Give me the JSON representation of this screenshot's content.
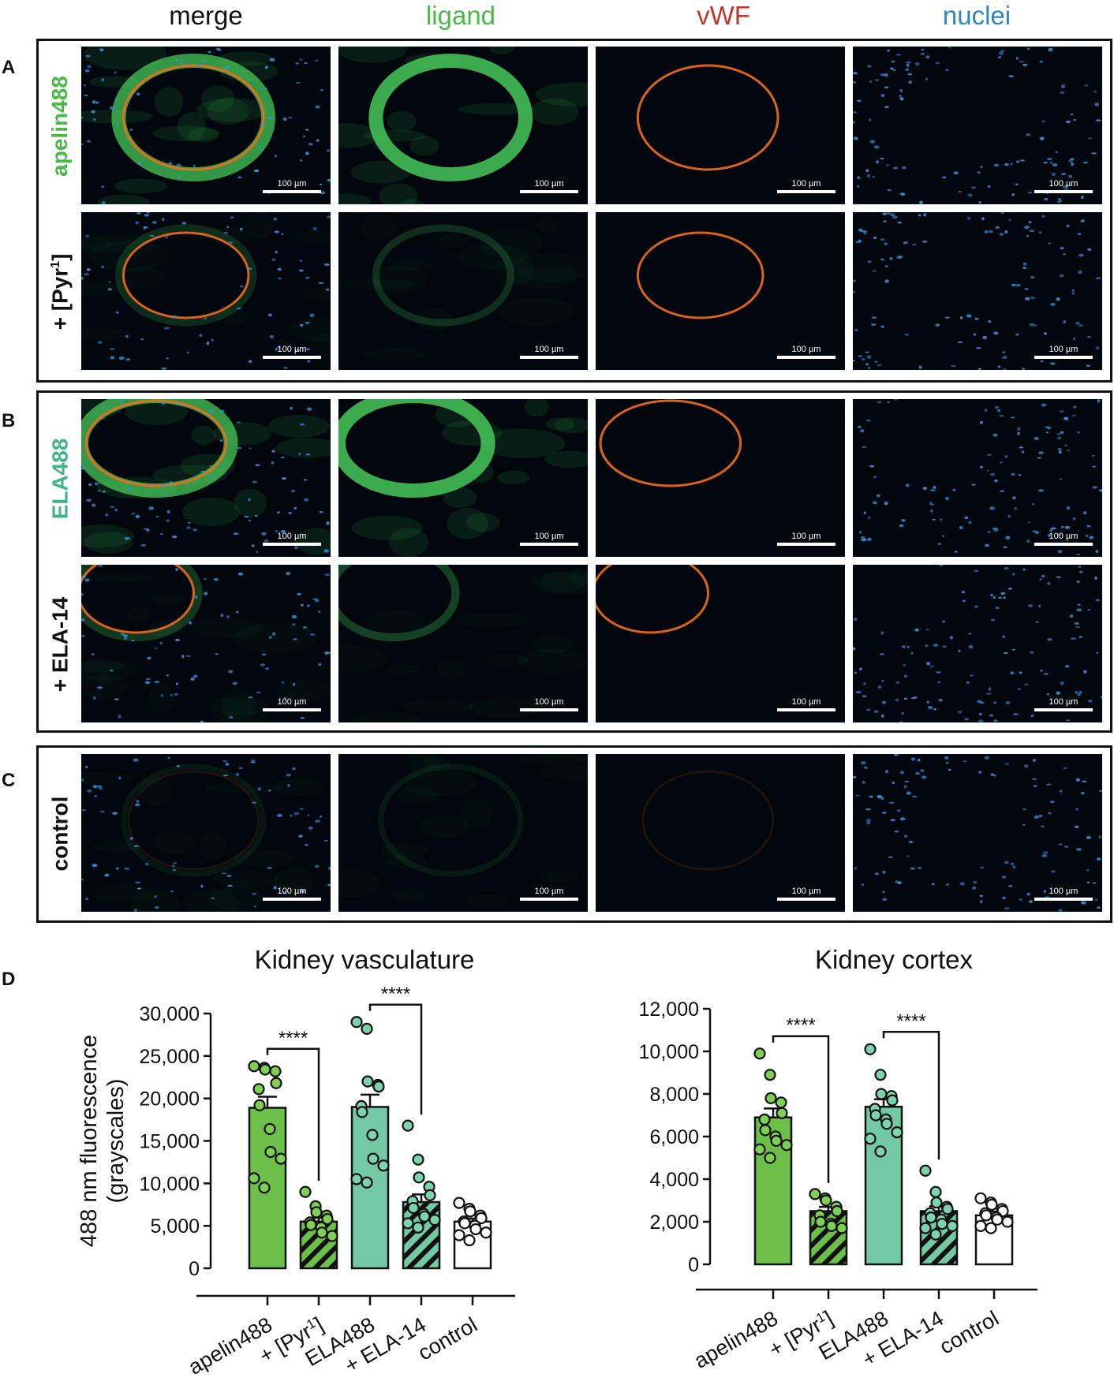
{
  "colors": {
    "green": "#4cb84a",
    "red": "#c0392b",
    "blue": "#2f86c6",
    "apelin_bar": "#6cc04a",
    "ela_bar": "#72c9a4",
    "control_bar": "#ffffff",
    "dot_apelin": "#7fcf56",
    "dot_ela": "#7dd3ae"
  },
  "column_headers": [
    "merge",
    "ligand",
    "vWF",
    "nuclei"
  ],
  "panels": {
    "A": {
      "letter": "A",
      "rows": [
        {
          "label": "apelin488",
          "label_color": "green"
        },
        {
          "label_prefix": "+ [Pyr",
          "label_sup": "1",
          "label_suffix": "]",
          "label_color": "black"
        }
      ]
    },
    "B": {
      "letter": "B",
      "rows": [
        {
          "label": "ELA488",
          "label_color": "teal"
        },
        {
          "label": "+ ELA-14",
          "label_color": "black"
        }
      ]
    },
    "C": {
      "letter": "C",
      "rows": [
        {
          "label": "control",
          "label_color": "black"
        }
      ]
    },
    "D": {
      "letter": "D"
    }
  },
  "scale_bar_label": "100 µm",
  "chart_data": [
    {
      "type": "bar",
      "title": "Kidney vasculature",
      "ylabel": "488 nm fluorescence\n(grayscales)",
      "ylim": [
        0,
        30000
      ],
      "yticks": [
        "0",
        "5,000",
        "10,000",
        "15,000",
        "20,000",
        "25,000",
        "30,000"
      ],
      "categories": [
        "apelin488",
        "+ [Pyr1]",
        "ELA488",
        "+ ELA-14",
        "control"
      ],
      "values": [
        18900,
        5500,
        19000,
        7800,
        5500
      ],
      "errors": [
        1300,
        450,
        1450,
        900,
        350
      ],
      "points": [
        [
          23800,
          23600,
          23400,
          23200,
          21800,
          21100,
          19200,
          16400,
          13700,
          12900,
          10600,
          9500
        ],
        [
          9000,
          7300,
          6600,
          6200,
          5800,
          5400,
          5100,
          4800,
          4200,
          3800
        ],
        [
          29000,
          28200,
          22000,
          21600,
          21400,
          19100,
          18400,
          15700,
          12900,
          12100,
          10500,
          10100
        ],
        [
          16800,
          12800,
          10700,
          9600,
          8600,
          7900,
          7100,
          6400,
          6100,
          5700,
          5300,
          4800
        ],
        [
          7700,
          7000,
          6700,
          6200,
          5900,
          5500,
          5300,
          5000,
          4600,
          4200,
          3900,
          3300
        ]
      ],
      "significance": [
        {
          "from": 0,
          "to": 1,
          "label": "****"
        },
        {
          "from": 2,
          "to": 3,
          "label": "****"
        }
      ]
    },
    {
      "type": "bar",
      "title": "Kidney cortex",
      "ylabel": "",
      "ylim": [
        0,
        12000
      ],
      "yticks": [
        "0",
        "2,000",
        "4,000",
        "6,000",
        "8,000",
        "10,000",
        "12,000"
      ],
      "categories": [
        "apelin488",
        "+ [Pyr1]",
        "ELA488",
        "+ ELA-14",
        "control"
      ],
      "values": [
        6900,
        2500,
        7400,
        2500,
        2300
      ],
      "errors": [
        420,
        200,
        350,
        230,
        170
      ],
      "points": [
        [
          9900,
          8900,
          7800,
          7600,
          7100,
          6800,
          6300,
          6000,
          5800,
          5600,
          5400,
          5000
        ],
        [
          3300,
          3100,
          3000,
          2700,
          2500,
          2300,
          2000,
          1900,
          1800,
          1700
        ],
        [
          10100,
          8900,
          8000,
          7900,
          7700,
          7300,
          7000,
          6800,
          6600,
          6200,
          5900,
          5300
        ],
        [
          4400,
          3400,
          2900,
          2700,
          2600,
          2400,
          2200,
          2100,
          1900,
          1800,
          1700,
          1400
        ],
        [
          3100,
          2900,
          2800,
          2600,
          2500,
          2400,
          2300,
          2200,
          2100,
          2000,
          1800,
          1700
        ]
      ],
      "significance": [
        {
          "from": 0,
          "to": 1,
          "label": "****"
        },
        {
          "from": 2,
          "to": 3,
          "label": "****"
        }
      ]
    }
  ]
}
